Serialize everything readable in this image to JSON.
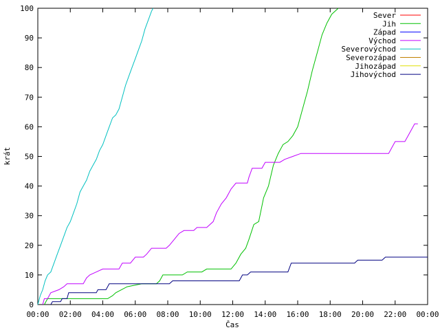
{
  "chart_data": {
    "type": "line",
    "title": "",
    "xlabel": "Čas",
    "ylabel": "krát",
    "xlim": [
      0,
      24
    ],
    "ylim": [
      0,
      100
    ],
    "x_ticks": [
      {
        "value": 0,
        "label": "00:00"
      },
      {
        "value": 2,
        "label": "02:00"
      },
      {
        "value": 4,
        "label": "04:00"
      },
      {
        "value": 6,
        "label": "06:00"
      },
      {
        "value": 8,
        "label": "08:00"
      },
      {
        "value": 10,
        "label": "10:00"
      },
      {
        "value": 12,
        "label": "12:00"
      },
      {
        "value": 14,
        "label": "14:00"
      },
      {
        "value": 16,
        "label": "16:00"
      },
      {
        "value": 18,
        "label": "18:00"
      },
      {
        "value": 20,
        "label": "20:00"
      },
      {
        "value": 22,
        "label": "22:00"
      },
      {
        "value": 24,
        "label": "00:00"
      }
    ],
    "y_ticks": [
      {
        "value": 0,
        "label": "0"
      },
      {
        "value": 10,
        "label": "10"
      },
      {
        "value": 20,
        "label": "20"
      },
      {
        "value": 30,
        "label": "30"
      },
      {
        "value": 40,
        "label": "40"
      },
      {
        "value": 50,
        "label": "50"
      },
      {
        "value": 60,
        "label": "60"
      },
      {
        "value": 70,
        "label": "70"
      },
      {
        "value": 80,
        "label": "80"
      },
      {
        "value": 90,
        "label": "90"
      },
      {
        "value": 100,
        "label": "100"
      }
    ],
    "grid": false,
    "legend_position": "top-right",
    "series": [
      {
        "name": "Sever",
        "color": "#ff0000",
        "points": []
      },
      {
        "name": "Jih",
        "color": "#00c000",
        "points": [
          [
            0.4,
            0
          ],
          [
            0.6,
            2
          ],
          [
            4.3,
            2
          ],
          [
            4.6,
            3
          ],
          [
            4.8,
            4
          ],
          [
            5.5,
            6
          ],
          [
            6.4,
            7
          ],
          [
            7.3,
            7
          ],
          [
            7.5,
            8
          ],
          [
            7.7,
            10
          ],
          [
            8.9,
            10
          ],
          [
            9.2,
            11
          ],
          [
            10.1,
            11
          ],
          [
            10.4,
            12
          ],
          [
            11.9,
            12
          ],
          [
            12.2,
            14
          ],
          [
            12.5,
            17
          ],
          [
            12.8,
            19
          ],
          [
            13,
            22
          ],
          [
            13.3,
            27
          ],
          [
            13.6,
            28
          ],
          [
            13.9,
            36
          ],
          [
            14.2,
            40
          ],
          [
            14.5,
            47
          ],
          [
            14.8,
            51
          ],
          [
            15.1,
            54
          ],
          [
            15.4,
            55
          ],
          [
            15.7,
            57
          ],
          [
            16,
            60
          ],
          [
            16.3,
            66
          ],
          [
            16.6,
            72
          ],
          [
            16.9,
            79
          ],
          [
            17.2,
            85
          ],
          [
            17.5,
            91
          ],
          [
            17.8,
            95
          ],
          [
            18.1,
            98
          ],
          [
            18.5,
            100
          ]
        ]
      },
      {
        "name": "Západ",
        "color": "#0000ff",
        "points": []
      },
      {
        "name": "Východ",
        "color": "#c000ff",
        "points": [
          [
            0.3,
            0
          ],
          [
            0.4,
            2
          ],
          [
            0.6,
            2
          ],
          [
            0.8,
            4
          ],
          [
            1.3,
            5
          ],
          [
            1.6,
            6
          ],
          [
            1.8,
            7
          ],
          [
            2.8,
            7
          ],
          [
            3,
            9
          ],
          [
            3.2,
            10
          ],
          [
            3.6,
            11
          ],
          [
            4,
            12
          ],
          [
            5,
            12
          ],
          [
            5.2,
            14
          ],
          [
            5.7,
            14
          ],
          [
            6,
            16
          ],
          [
            6.5,
            16
          ],
          [
            6.7,
            17
          ],
          [
            7,
            19
          ],
          [
            7.9,
            19
          ],
          [
            8.1,
            20
          ],
          [
            8.4,
            22
          ],
          [
            8.7,
            24
          ],
          [
            9,
            25
          ],
          [
            9.6,
            25
          ],
          [
            9.8,
            26
          ],
          [
            10.4,
            26
          ],
          [
            10.8,
            28
          ],
          [
            11,
            31
          ],
          [
            11.3,
            34
          ],
          [
            11.6,
            36
          ],
          [
            11.9,
            39
          ],
          [
            12.2,
            41
          ],
          [
            12.9,
            41
          ],
          [
            13,
            43
          ],
          [
            13.2,
            46
          ],
          [
            13.8,
            46
          ],
          [
            14,
            48
          ],
          [
            14.9,
            48
          ],
          [
            15.2,
            49
          ],
          [
            15.7,
            50
          ],
          [
            16.2,
            51
          ],
          [
            21.6,
            51
          ],
          [
            21.8,
            53
          ],
          [
            22,
            55
          ],
          [
            22.6,
            55
          ],
          [
            22.8,
            57
          ],
          [
            23,
            59
          ],
          [
            23.2,
            61
          ],
          [
            23.4,
            61
          ]
        ]
      },
      {
        "name": "Severovýchod",
        "color": "#00c0c0",
        "points": [
          [
            0,
            0
          ],
          [
            0.15,
            3
          ],
          [
            0.3,
            5
          ],
          [
            0.45,
            8
          ],
          [
            0.6,
            10
          ],
          [
            0.8,
            11
          ],
          [
            1,
            14
          ],
          [
            1.2,
            17
          ],
          [
            1.4,
            20
          ],
          [
            1.6,
            23
          ],
          [
            1.8,
            26
          ],
          [
            2,
            28
          ],
          [
            2.2,
            31
          ],
          [
            2.4,
            34
          ],
          [
            2.6,
            38
          ],
          [
            2.8,
            40
          ],
          [
            3,
            42
          ],
          [
            3.2,
            45
          ],
          [
            3.4,
            47
          ],
          [
            3.6,
            49
          ],
          [
            3.8,
            52
          ],
          [
            4,
            54
          ],
          [
            4.2,
            57
          ],
          [
            4.4,
            60
          ],
          [
            4.6,
            63
          ],
          [
            4.8,
            64
          ],
          [
            5,
            66
          ],
          [
            5.2,
            70
          ],
          [
            5.4,
            74
          ],
          [
            5.6,
            77
          ],
          [
            5.8,
            80
          ],
          [
            6,
            83
          ],
          [
            6.2,
            86
          ],
          [
            6.4,
            89
          ],
          [
            6.6,
            93
          ],
          [
            6.8,
            96
          ],
          [
            7,
            99
          ],
          [
            7.1,
            100
          ]
        ]
      },
      {
        "name": "Severozápad",
        "color": "#c08000",
        "points": []
      },
      {
        "name": "Jihozápad",
        "color": "#e0e000",
        "points": []
      },
      {
        "name": "Jihovýchod",
        "color": "#000080",
        "points": [
          [
            0.8,
            0
          ],
          [
            0.9,
            1
          ],
          [
            1.4,
            1
          ],
          [
            1.5,
            2
          ],
          [
            1.8,
            2
          ],
          [
            1.9,
            4
          ],
          [
            3.6,
            4
          ],
          [
            3.7,
            5
          ],
          [
            4.2,
            5
          ],
          [
            4.4,
            7
          ],
          [
            8.1,
            7
          ],
          [
            8.3,
            8
          ],
          [
            12.4,
            8
          ],
          [
            12.6,
            10
          ],
          [
            12.9,
            10
          ],
          [
            13.1,
            11
          ],
          [
            15.4,
            11
          ],
          [
            15.6,
            14
          ],
          [
            19.5,
            14
          ],
          [
            19.7,
            15
          ],
          [
            21.2,
            15
          ],
          [
            21.4,
            16
          ],
          [
            24,
            16
          ]
        ]
      }
    ]
  }
}
